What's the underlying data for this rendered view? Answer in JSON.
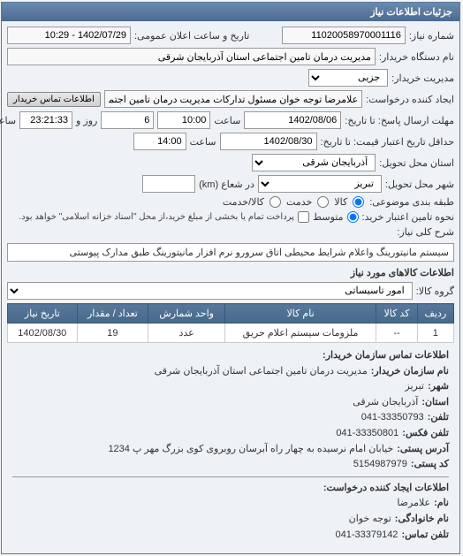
{
  "panel_title": "جزئیات اطلاعات نیاز",
  "labels": {
    "need_no": "شماره نیاز:",
    "announce_dt": "تاریخ و ساعت اعلان عمومی:",
    "buyer_org": "نام دستگاه خریدار:",
    "buyer_mgmt": "مدیریت خریدار:",
    "requester": "ایجاد کننده درخواست:",
    "contact_btn": "اطلاعات تماس خریدار",
    "reply_deadline": "مهلت ارسال پاسخ: تا تاریخ:",
    "hour": "ساعت",
    "and": "و",
    "day": "روز",
    "remain": "ساعت باقی مانده",
    "validity": "حداقل تاریخ اعتبار قیمت: تا تاریخ:",
    "province": "استان محل تحویل:",
    "city": "شهر محل تحویل:",
    "category": "طبقه بندی موضوعی:",
    "goods": "کالا",
    "service": "خدمت",
    "both": "کالا/خدمت",
    "radius": "در شعاع (km)",
    "supply_type": "نحوه تامین اعتبار خرید:",
    "medium": "متوسط",
    "supply_note": "پرداخت تمام یا بخشی از مبلغ خرید،از محل \"اسناد خزانه اسلامی\" خواهد بود.",
    "desc": "شرح کلی نیاز:",
    "goods_info": "اطلاعات کالاهای مورد نیاز",
    "goods_group": "گروه کالا:",
    "tbl_row": "ردیف",
    "tbl_code": "کد کالا",
    "tbl_name": "نام کالا",
    "tbl_unit": "واحد شمارش",
    "tbl_qty": "تعداد / مقدار",
    "tbl_date": "تاریخ نیاز",
    "contact_buyer_hdr": "اطلاعات تماس سازمان خریدار:",
    "org_name": "نام سازمان خریدار:",
    "city_lbl": "شهر:",
    "province_lbl": "استان:",
    "phone": "تلفن:",
    "fax": "تلفن فکس:",
    "postal_addr": "آدرس پستی:",
    "postal_code": "کد پستی:",
    "requester_hdr": "اطلاعات ایجاد کننده درخواست:",
    "name": "نام:",
    "family": "نام خانوادگی:",
    "contact_phone": "تلفن تماس:"
  },
  "values": {
    "need_no": "11020058970001116",
    "announce_dt": "1402/07/29 - 10:29",
    "buyer_org": "مدیریت درمان تامین اجتماعی استان آذربایجان شرقی",
    "buyer_mgmt": "جزیی",
    "requester": "علامرضا توجه خوان مسئول تدارکات مدیریت درمان تامین اجتماعی استان آذربایج",
    "reply_date": "1402/08/06",
    "reply_time": "10:00",
    "remain_days": "6",
    "remain_time": "23:21:33",
    "validity_date": "1402/08/30",
    "validity_time": "14:00",
    "province": "آذربایجان شرقی",
    "city": "تبریز",
    "radius": "",
    "desc": "سیستم مانیتورینگ واعلام شرایط محیطی اتاق سرورو نرم افزار مانیتورینگ طبق مدارک پیوستی",
    "goods_group": "امور تاسیساتی"
  },
  "table_row": {
    "idx": "1",
    "code": "--",
    "name": "ملزومات سیستم اعلام حریق",
    "unit": "عدد",
    "qty": "19",
    "date": "1402/08/30"
  },
  "contact": {
    "org": "مدیریت درمان تامین اجتماعی استان آذربایجان شرقی",
    "city": "تبریز",
    "province": "آذربایجان شرقی",
    "phone": "041-33350793",
    "fax": "041-33350801",
    "addr": "خیابان امام نرسیده به چهار راه آبرسان روبروی کوی بزرگ مهر پ 1234",
    "postal": "5154987979",
    "req_name": "علامرضا",
    "req_family": "توجه خوان",
    "req_phone": "041-33379142"
  }
}
